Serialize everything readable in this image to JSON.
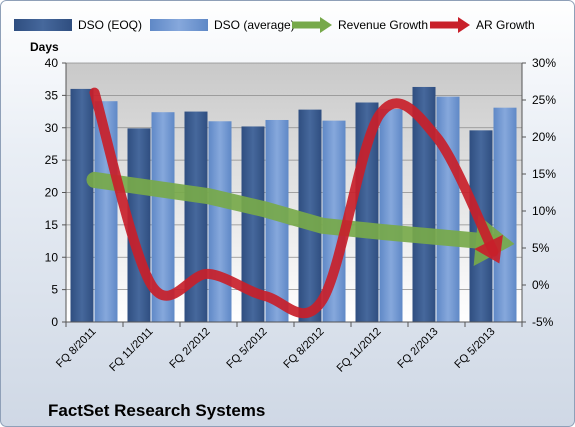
{
  "chart_data": {
    "type": "bar",
    "title": "FactSet Research Systems",
    "categories": [
      "FQ 8/2011",
      "FQ 11/2011",
      "FQ 2/2012",
      "FQ 5/2012",
      "FQ 8/2012",
      "FQ 11/2012",
      "FQ 2/2013",
      "FQ 5/2013"
    ],
    "ylabel": "Days",
    "ylim": [
      0,
      40
    ],
    "yticks": [
      "0",
      "5",
      "10",
      "15",
      "20",
      "25",
      "30",
      "35",
      "40"
    ],
    "y2lim": [
      -5,
      30
    ],
    "y2ticks": [
      "-5%",
      "0%",
      "5%",
      "10%",
      "15%",
      "20%",
      "25%",
      "30%"
    ],
    "legend_position": "top",
    "series": [
      {
        "name": "DSO (EOQ)",
        "kind": "bar",
        "axis": "left",
        "color": "#3b5c8f",
        "values": [
          36.0,
          29.9,
          32.5,
          30.2,
          32.8,
          33.9,
          36.3,
          29.6
        ]
      },
      {
        "name": "DSO (average)",
        "kind": "bar",
        "axis": "left",
        "color": "#6f96d2",
        "values": [
          34.1,
          32.4,
          31.0,
          31.2,
          31.1,
          32.9,
          34.8,
          33.1
        ]
      },
      {
        "name": "Revenue Growth",
        "kind": "arrow-line",
        "axis": "right",
        "color": "#77a94a",
        "values": [
          14.2,
          13.1,
          12.0,
          10.2,
          8.0,
          7.2,
          6.5,
          5.8
        ]
      },
      {
        "name": "AR Growth",
        "kind": "arrow-line",
        "axis": "right",
        "color": "#c8202a",
        "values": [
          26.0,
          0.0,
          1.5,
          -1.5,
          -2.0,
          23.0,
          20.0,
          4.5
        ]
      }
    ]
  }
}
